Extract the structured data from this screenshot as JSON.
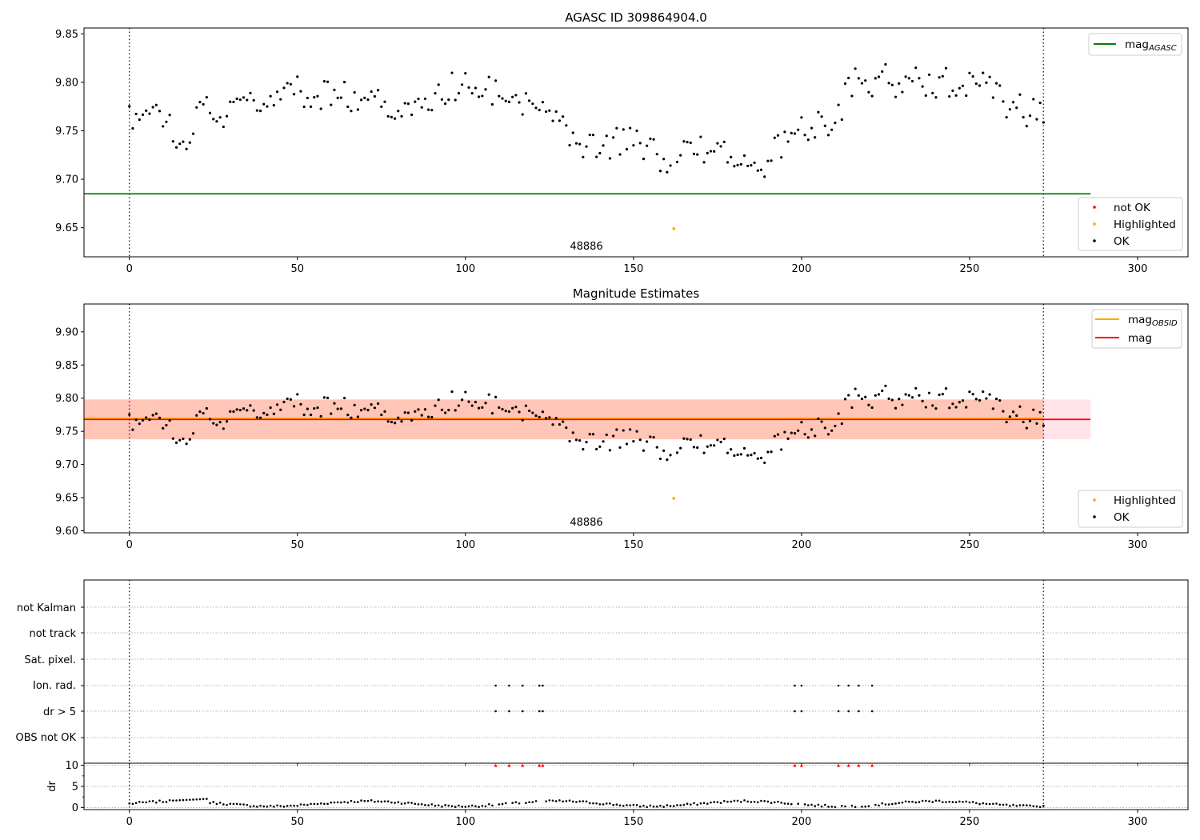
{
  "chart_data": [
    {
      "id": "top",
      "type": "scatter",
      "title": "AGASC ID 309864904.0",
      "xlim": [
        -13.5,
        315
      ],
      "ylim": [
        9.62,
        9.856
      ],
      "xticks": [
        0,
        50,
        100,
        150,
        200,
        250,
        300
      ],
      "yticks": [
        9.65,
        9.7,
        9.75,
        9.8,
        9.85
      ],
      "ytick_labels": [
        "9.65",
        "9.70",
        "9.75",
        "9.80",
        "9.85"
      ],
      "hline": {
        "y": 9.685,
        "x_end": 286,
        "color": "#008000",
        "legend_main": "mag",
        "legend_sub": "AGASC"
      },
      "vlines": [
        0,
        272
      ],
      "annotation": {
        "text": "48886",
        "x": 136,
        "y": 9.633
      },
      "highlighted_points": [
        [
          162,
          9.649
        ]
      ],
      "legend_markers": [
        {
          "label": "not OK",
          "color": "#ff0000"
        },
        {
          "label": "Highlighted",
          "color": "#ffa500"
        },
        {
          "label": "OK",
          "color": "#000000"
        }
      ]
    },
    {
      "id": "mid",
      "type": "scatter",
      "title": "Magnitude Estimates",
      "xlim": [
        -13.5,
        315
      ],
      "ylim": [
        9.597,
        9.942
      ],
      "xticks": [
        0,
        50,
        100,
        150,
        200,
        250,
        300
      ],
      "yticks": [
        9.6,
        9.65,
        9.7,
        9.75,
        9.8,
        9.85,
        9.9
      ],
      "ytick_labels": [
        "9.60",
        "9.65",
        "9.70",
        "9.75",
        "9.80",
        "9.85",
        "9.90"
      ],
      "band_outer": {
        "y0": 9.738,
        "y1": 9.798,
        "color": "#ffc0cb"
      },
      "band_inner": {
        "y0": 9.738,
        "y1": 9.798,
        "x_end": 272,
        "color": "#ffa07a"
      },
      "line_mag": {
        "y": 9.768,
        "color": "#ff0000",
        "label": "mag"
      },
      "line_obsid": {
        "y": 9.768,
        "color": "#ffa500",
        "legend_main": "mag",
        "legend_sub": "OBSID"
      },
      "vlines": [
        0,
        272
      ],
      "annotation": {
        "text": "48886",
        "x": 136,
        "y": 9.608
      },
      "highlighted_points": [
        [
          162,
          9.649
        ]
      ],
      "legend_markers": [
        {
          "label": "Highlighted",
          "color": "#ffa500"
        },
        {
          "label": "OK",
          "color": "#000000"
        }
      ]
    },
    {
      "id": "flags",
      "type": "scatter",
      "xlim": [
        -13.5,
        315
      ],
      "categories": [
        "OBS not OK",
        "dr > 5",
        "Ion. rad.",
        "Sat. pixel.",
        "not track",
        "not Kalman"
      ],
      "flag_points": {
        "dr > 5": [
          109,
          113,
          117,
          122,
          123,
          198,
          200,
          211,
          214,
          217,
          221
        ],
        "Ion. rad.": [
          109,
          113,
          117,
          122,
          123,
          198,
          200,
          211,
          214,
          217,
          221
        ]
      },
      "vlines": [
        0,
        272
      ]
    },
    {
      "id": "dr",
      "type": "scatter",
      "ylabel": "dr",
      "xlim": [
        -13.5,
        315
      ],
      "ylim": [
        -0.5,
        10.5
      ],
      "xticks": [
        0,
        50,
        100,
        150,
        200,
        250,
        300
      ],
      "yticks": [
        0,
        5,
        10
      ],
      "ytick_labels": [
        "0",
        "5",
        "10"
      ],
      "clipped_points": [
        109,
        113,
        117,
        122,
        123,
        198,
        200,
        211,
        214,
        217,
        221
      ],
      "vlines": [
        0,
        272
      ]
    }
  ]
}
